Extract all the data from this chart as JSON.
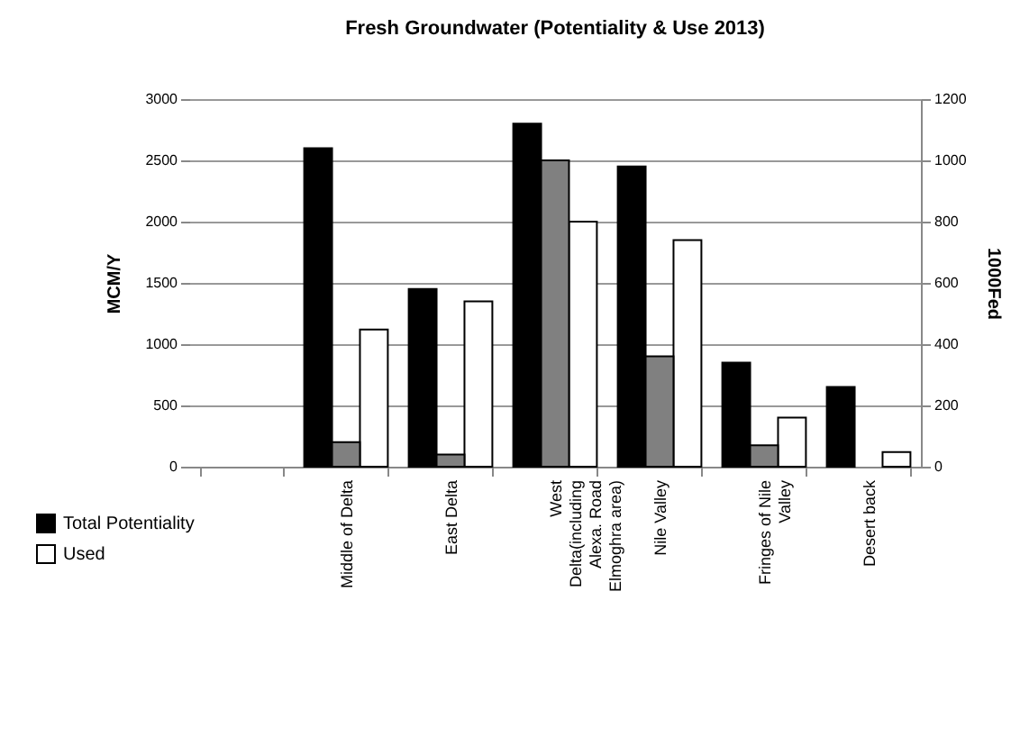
{
  "chart_data": {
    "type": "bar",
    "title": "Fresh Groundwater (Potentiality & Use 2013)",
    "categories": [
      null,
      "Middle of Delta",
      "East Delta",
      "West Delta(including Alexa. Road Elmoghra area)",
      "Nile Valley",
      "Fringes of Nile Valley",
      "Desert back"
    ],
    "series": [
      {
        "name": "Total Potentiality",
        "color": "#000000",
        "values": [
          null,
          2600,
          1450,
          2800,
          2450,
          850,
          650
        ]
      },
      {
        "color": "#808080",
        "axis": "y2",
        "values": [
          null,
          80,
          40,
          1000,
          360,
          70,
          null
        ]
      },
      {
        "name": "Used",
        "color": "#ffffff",
        "values": [
          null,
          1120,
          1350,
          2000,
          1850,
          400,
          120
        ]
      }
    ],
    "ylabel": "MCM/Y",
    "y2label": "1000Fed",
    "ylim": [
      0,
      3000
    ],
    "yticks": [
      0,
      500,
      1000,
      1500,
      2000,
      2500,
      3000
    ],
    "y2lim": [
      0,
      1200
    ],
    "y2ticks": [
      0,
      200,
      400,
      600,
      800,
      1000,
      1200
    ],
    "grid": "y",
    "legend": "bottom left"
  }
}
